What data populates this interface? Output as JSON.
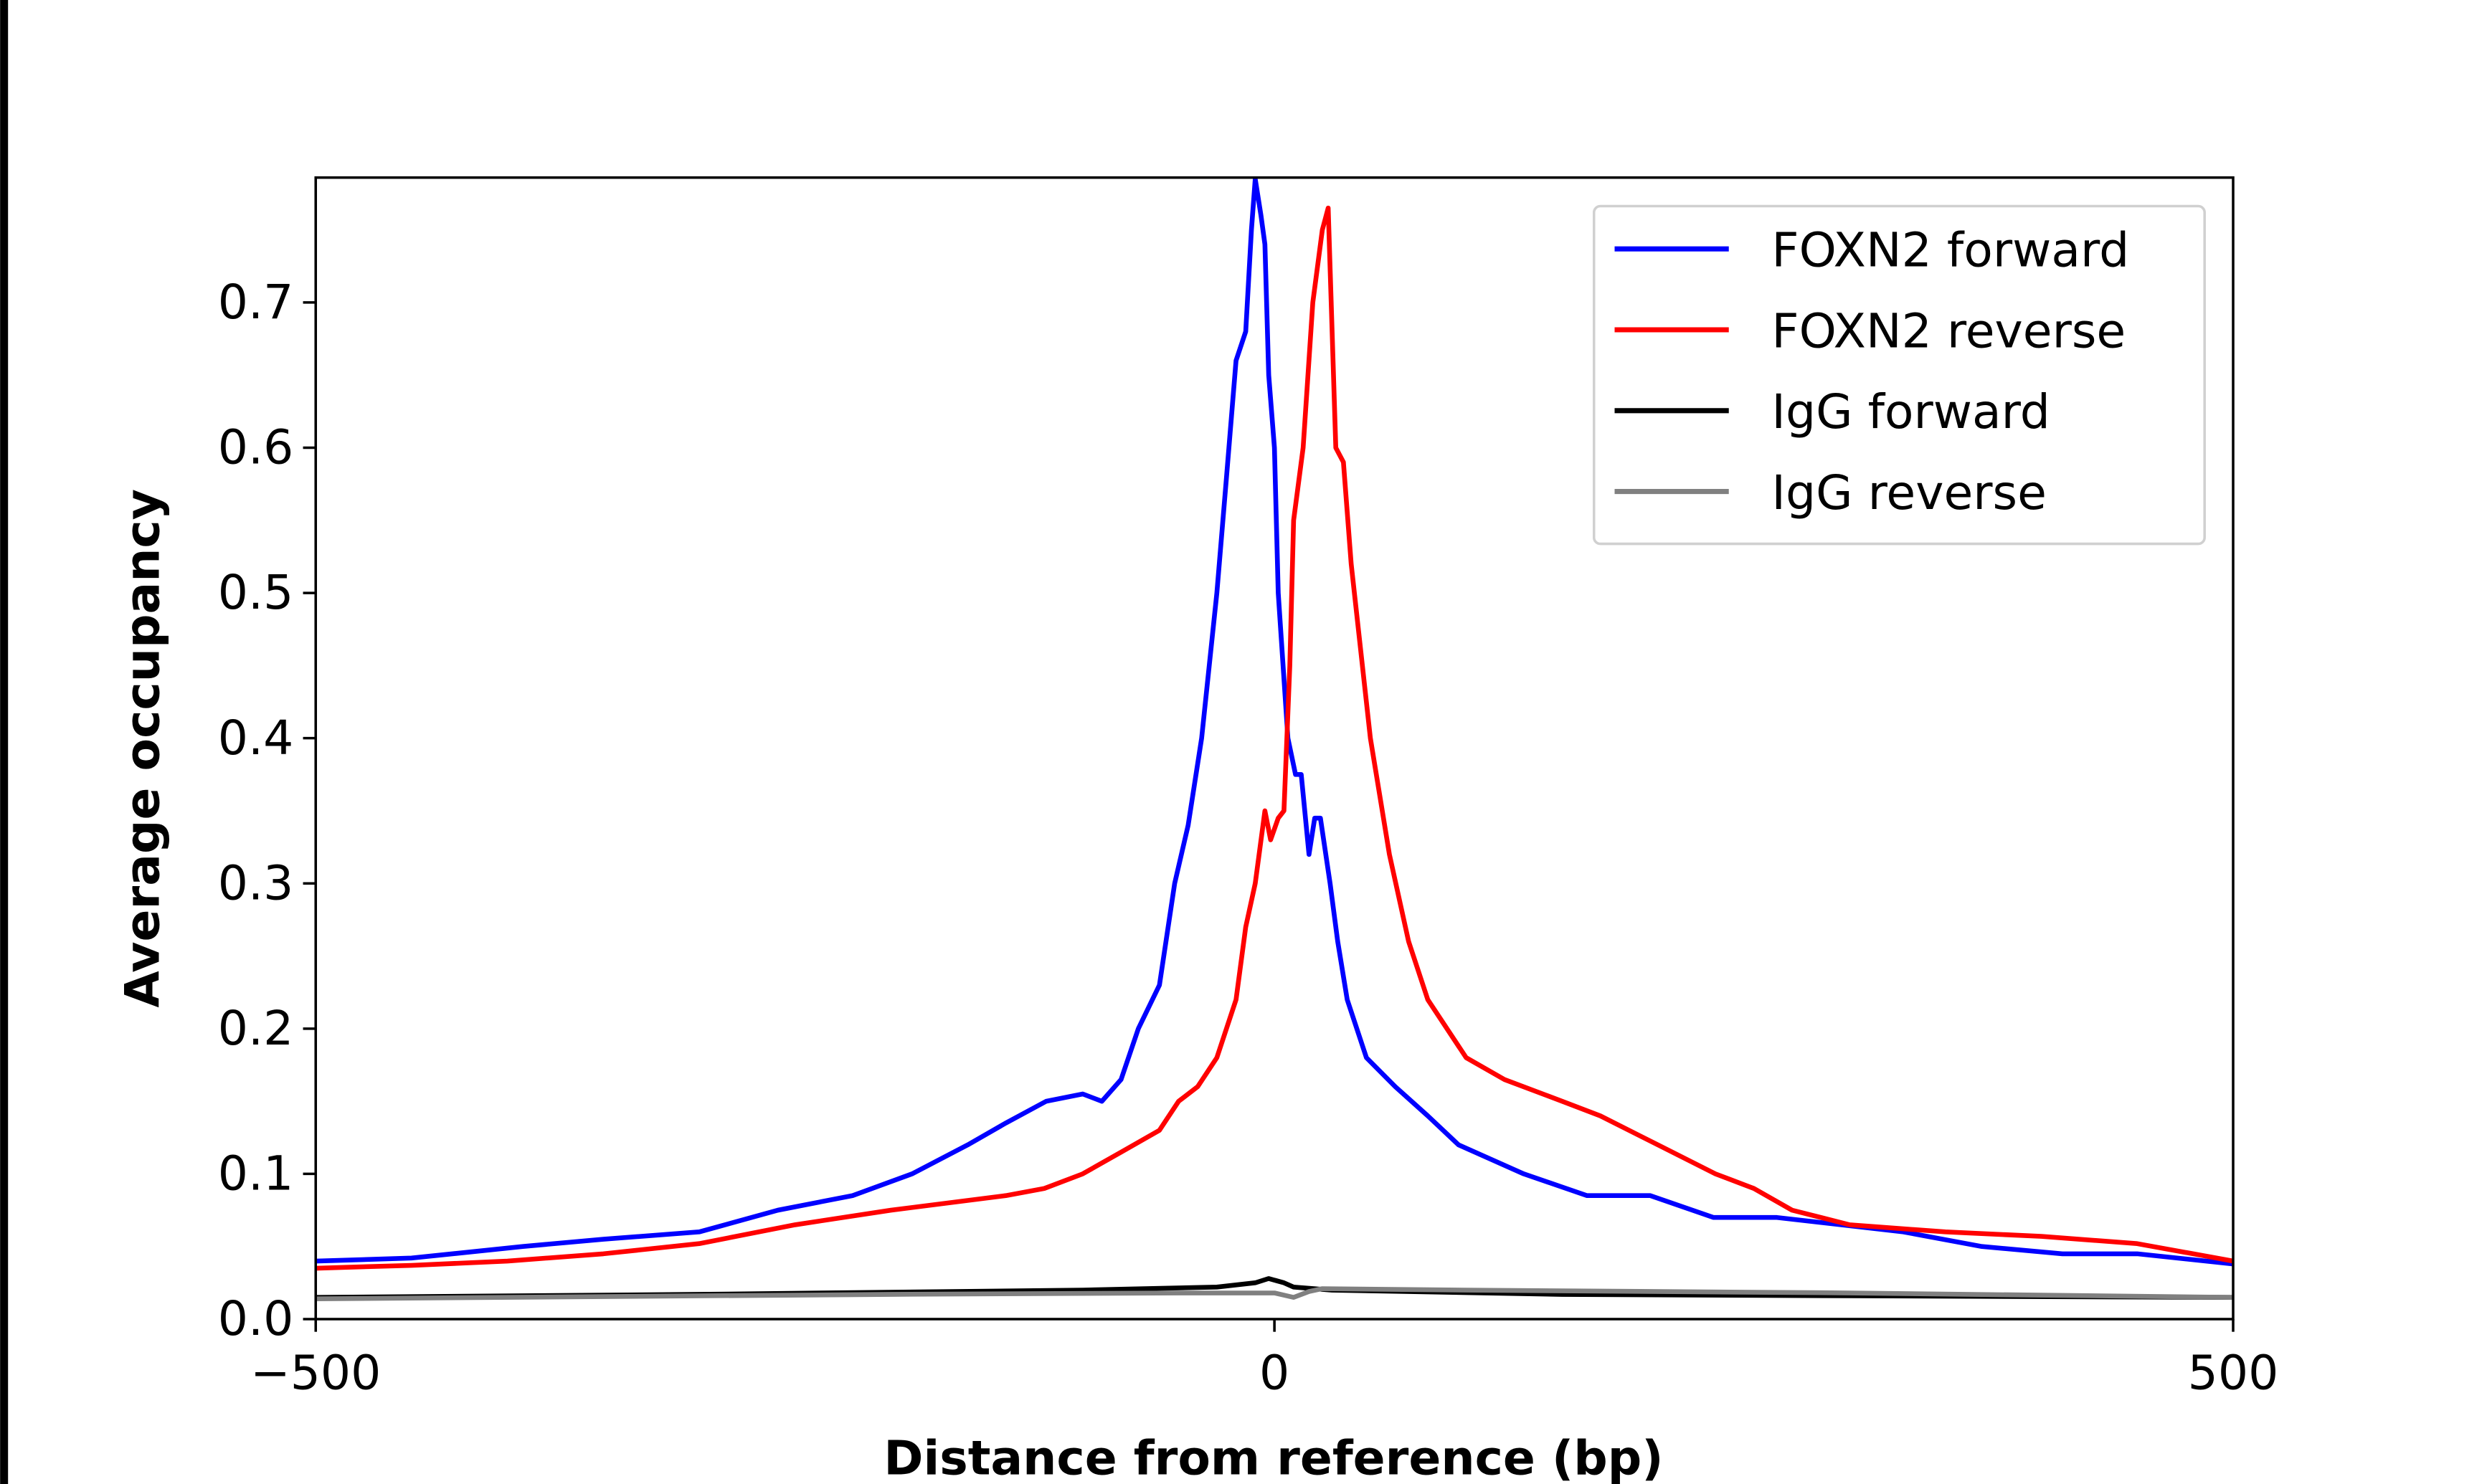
{
  "chart_data": {
    "type": "line",
    "title": "",
    "xlabel": "Distance from reference (bp)",
    "ylabel": "Average occupancy",
    "xlim": [
      -500,
      500
    ],
    "ylim": [
      0,
      0.786
    ],
    "xticks": [
      -500,
      0,
      500
    ],
    "xtick_labels": [
      "−500",
      "0",
      "500"
    ],
    "yticks": [
      0.0,
      0.1,
      0.2,
      0.3,
      0.4,
      0.5,
      0.6,
      0.7
    ],
    "ytick_labels": [
      "0.0",
      "0.1",
      "0.2",
      "0.3",
      "0.4",
      "0.5",
      "0.6",
      "0.7"
    ],
    "grid": false,
    "legend_position": "top-right",
    "series": [
      {
        "name": "FOXN2 forward",
        "color": "#0000ff",
        "x": [
          -500,
          -450,
          -392,
          -350,
          -300,
          -259,
          -220,
          -189,
          -160,
          -140,
          -119,
          -100,
          -90,
          -80,
          -71,
          -60,
          -52,
          -45,
          -38,
          -30,
          -25,
          -20,
          -15,
          -12,
          -10,
          -7,
          -5,
          -3,
          0,
          2,
          7,
          11,
          14,
          18,
          21,
          24,
          29,
          33,
          38,
          48,
          63,
          80,
          96,
          130,
          163,
          196,
          229,
          262,
          328,
          369,
          411,
          450,
          500
        ],
        "y": [
          0.04,
          0.042,
          0.05,
          0.055,
          0.06,
          0.075,
          0.085,
          0.1,
          0.12,
          0.135,
          0.15,
          0.155,
          0.15,
          0.165,
          0.2,
          0.23,
          0.3,
          0.34,
          0.4,
          0.5,
          0.58,
          0.66,
          0.68,
          0.75,
          0.785,
          0.76,
          0.74,
          0.65,
          0.6,
          0.5,
          0.4,
          0.375,
          0.375,
          0.32,
          0.345,
          0.345,
          0.3,
          0.26,
          0.22,
          0.18,
          0.16,
          0.14,
          0.12,
          0.1,
          0.085,
          0.085,
          0.07,
          0.07,
          0.06,
          0.05,
          0.045,
          0.045,
          0.038
        ]
      },
      {
        "name": "FOXN2 reverse",
        "color": "#ff0000",
        "x": [
          -500,
          -450,
          -400,
          -350,
          -300,
          -250,
          -200,
          -170,
          -140,
          -120,
          -100,
          -80,
          -60,
          -50,
          -40,
          -30,
          -20,
          -15,
          -10,
          -5,
          -2,
          2,
          5,
          8,
          10,
          15,
          20,
          25,
          28,
          32,
          36,
          40,
          50,
          60,
          70,
          80,
          100,
          120,
          150,
          170,
          200,
          230,
          250,
          270,
          300,
          350,
          400,
          450,
          500
        ],
        "y": [
          0.035,
          0.037,
          0.04,
          0.045,
          0.052,
          0.065,
          0.075,
          0.08,
          0.085,
          0.09,
          0.1,
          0.115,
          0.13,
          0.15,
          0.16,
          0.18,
          0.22,
          0.27,
          0.3,
          0.35,
          0.33,
          0.345,
          0.35,
          0.45,
          0.55,
          0.6,
          0.7,
          0.75,
          0.765,
          0.6,
          0.59,
          0.52,
          0.4,
          0.32,
          0.26,
          0.22,
          0.18,
          0.165,
          0.15,
          0.14,
          0.12,
          0.1,
          0.09,
          0.075,
          0.065,
          0.06,
          0.057,
          0.052,
          0.04
        ]
      },
      {
        "name": "IgG forward",
        "color": "#000000",
        "x": [
          -500,
          -300,
          -100,
          -30,
          -10,
          -3,
          5,
          10,
          30,
          150,
          300,
          500
        ],
        "y": [
          0.015,
          0.017,
          0.02,
          0.022,
          0.025,
          0.028,
          0.025,
          0.022,
          0.02,
          0.017,
          0.016,
          0.015
        ]
      },
      {
        "name": "IgG reverse",
        "color": "#808080",
        "x": [
          -500,
          -200,
          -50,
          0,
          10,
          18,
          25,
          100,
          300,
          500
        ],
        "y": [
          0.014,
          0.017,
          0.018,
          0.018,
          0.015,
          0.019,
          0.021,
          0.02,
          0.018,
          0.015
        ]
      }
    ]
  }
}
